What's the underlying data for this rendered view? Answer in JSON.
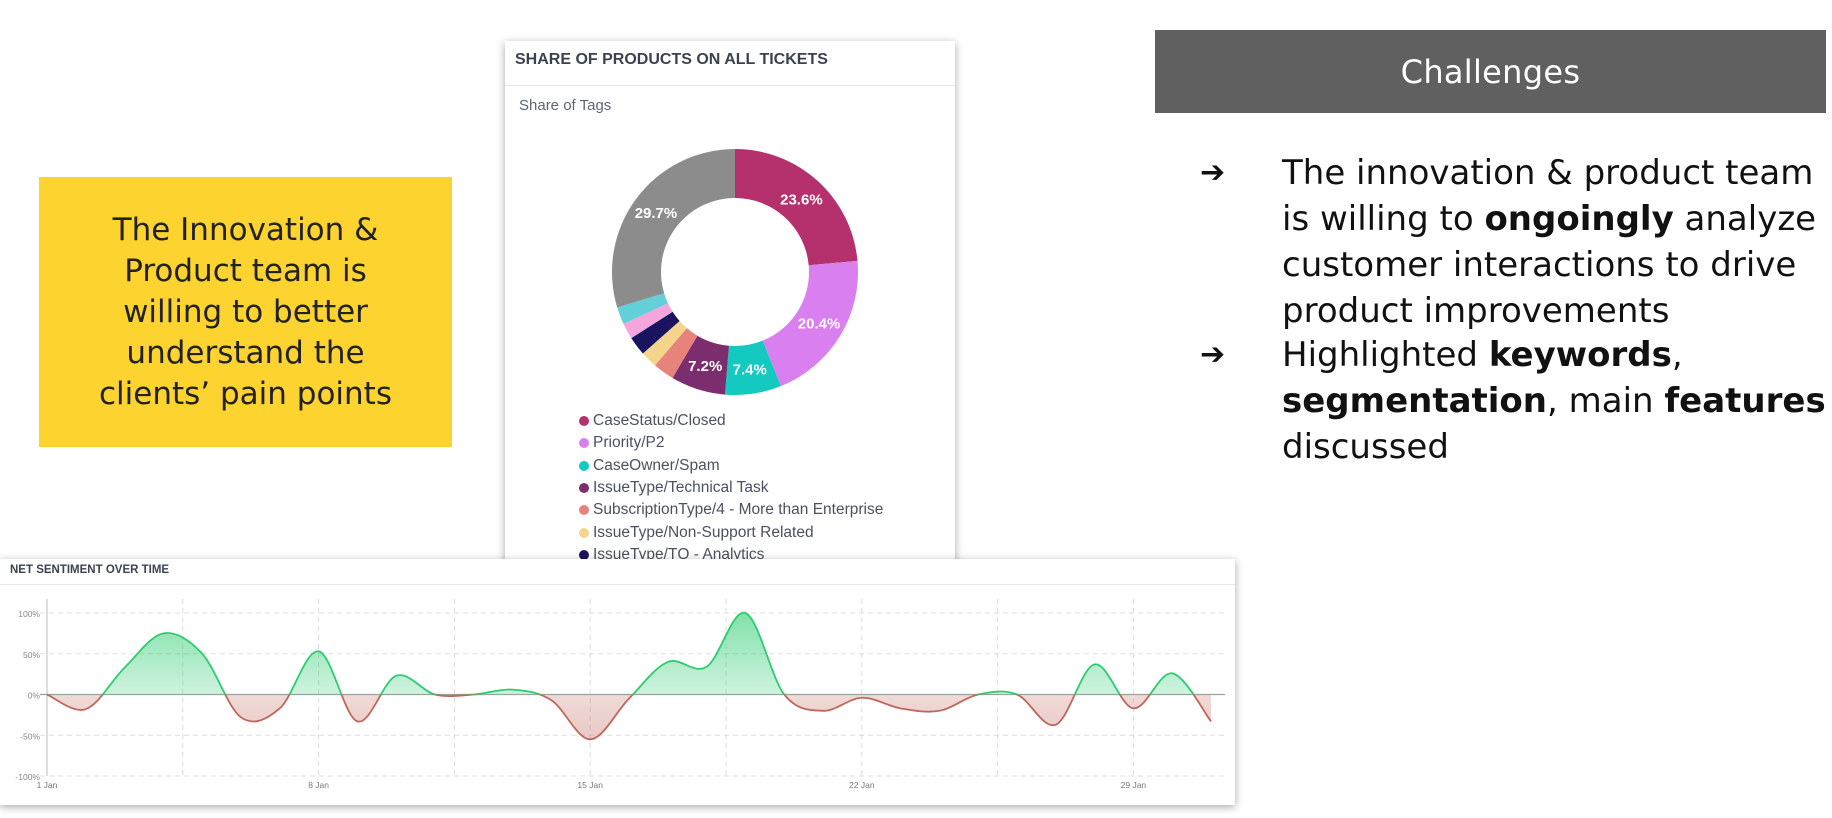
{
  "yellow_box": {
    "lines": [
      "The Innovation &",
      "Product team is",
      "willing to better",
      "understand the",
      "clients’ pain points"
    ],
    "color": "#fdd32f"
  },
  "challenges": {
    "title": "Challenges",
    "header_color": "#606060",
    "bullets": [
      {
        "parts": [
          {
            "text": "The innovation & product team is willing to ",
            "bold": false
          },
          {
            "text": "ongoingly",
            "bold": true
          },
          {
            "text": " analyze customer interactions to drive product improvements",
            "bold": false
          }
        ]
      },
      {
        "parts": [
          {
            "text": "Highlighted ",
            "bold": false
          },
          {
            "text": "keywords",
            "bold": true
          },
          {
            "text": ", ",
            "bold": false
          },
          {
            "text": "segmentation",
            "bold": true
          },
          {
            "text": ", main ",
            "bold": false
          },
          {
            "text": "features",
            "bold": true
          },
          {
            "text": " discussed",
            "bold": false
          }
        ]
      }
    ],
    "arrow_icon": "arrow-right-icon",
    "arrow_glyph": "➔"
  },
  "chart_data": [
    {
      "type": "pie",
      "donut": true,
      "title": "SHARE OF PRODUCTS ON ALL TICKETS",
      "subtitle": "Share of Tags",
      "legend_position": "bottom",
      "slices": [
        {
          "label": "CaseStatus/Closed",
          "value": 23.6,
          "value_label": "23.6%",
          "color": "#b5316e"
        },
        {
          "label": "Priority/P2",
          "value": 20.4,
          "value_label": "20.4%",
          "color": "#d97ff0"
        },
        {
          "label": "CaseOwner/Spam",
          "value": 7.4,
          "value_label": "7.4%",
          "color": "#14c9c0"
        },
        {
          "label": "IssueType/Technical Task",
          "value": 7.2,
          "value_label": "7.2%",
          "color": "#7c2d6e"
        },
        {
          "label": "SubscriptionType/4 - More than Enterprise",
          "value": 2.8,
          "value_label": "",
          "color": "#e8837c"
        },
        {
          "label": "IssueType/Non-Support Related",
          "value": 2.2,
          "value_label": "",
          "color": "#f5d48c"
        },
        {
          "label": "IssueType/TQ - Analytics",
          "value": 2.5,
          "value_label": "",
          "color": "#1a1460"
        },
        {
          "label": "",
          "value": 2.1,
          "value_label": "",
          "color": "#f5a6dc"
        },
        {
          "label": "",
          "value": 2.3,
          "value_label": "",
          "color": "#62cfd9"
        },
        {
          "label": "",
          "value": 29.7,
          "value_label": "29.7%",
          "color": "#8c8c8c"
        }
      ]
    },
    {
      "type": "area",
      "title": "NET SENTIMENT OVER TIME",
      "x": [
        "1 Jan",
        "2 Jan",
        "3 Jan",
        "4 Jan",
        "5 Jan",
        "6 Jan",
        "7 Jan",
        "8 Jan",
        "9 Jan",
        "10 Jan",
        "11 Jan",
        "12 Jan",
        "13 Jan",
        "14 Jan",
        "15 Jan",
        "16 Jan",
        "17 Jan",
        "18 Jan",
        "19 Jan",
        "20 Jan",
        "21 Jan",
        "22 Jan",
        "23 Jan",
        "24 Jan",
        "25 Jan",
        "26 Jan",
        "27 Jan",
        "28 Jan",
        "29 Jan",
        "30 Jan",
        "31 Jan"
      ],
      "values": [
        0,
        -18,
        33,
        75,
        50,
        -28,
        -17,
        53,
        -33,
        23,
        0,
        0,
        6,
        -7,
        -55,
        -5,
        40,
        34,
        100,
        0,
        -20,
        -4,
        -17,
        -20,
        0,
        0,
        -37,
        37,
        -17,
        26,
        -33
      ],
      "x_ticks": [
        "1 Jan",
        "8 Jan",
        "15 Jan",
        "22 Jan",
        "29 Jan"
      ],
      "y_ticks": [
        "100%",
        "50%",
        "0%",
        "-50%",
        "-100%"
      ],
      "ylim": [
        -100,
        100
      ],
      "grid": true,
      "positive_color": "#2ecc71",
      "negative_color": "#c0665a"
    }
  ]
}
